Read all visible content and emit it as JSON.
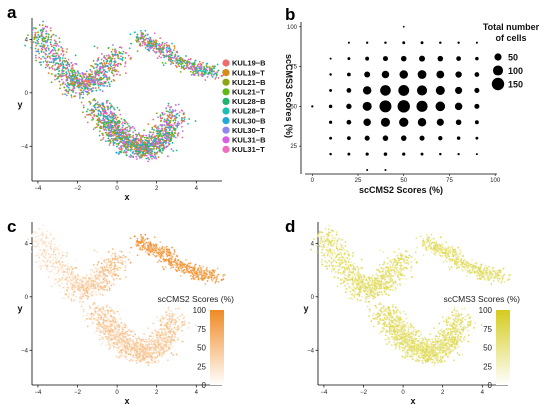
{
  "panel_labels": {
    "a": "a",
    "b": "b",
    "c": "c",
    "d": "d"
  },
  "chart_data": [
    {
      "panel": "a",
      "type": "scatter",
      "xlabel": "x",
      "ylabel": "y",
      "xticks": [
        -4,
        -2,
        0,
        2,
        4
      ],
      "yticks": [
        4,
        0,
        -4
      ],
      "xlim": [
        -4.3,
        5.3
      ],
      "ylim": [
        -6.6,
        5.6
      ],
      "legend_position": "right",
      "series": [
        {
          "name": "KUL19−B",
          "color": "#f26b6b"
        },
        {
          "name": "KUL19−T",
          "color": "#d98a1a"
        },
        {
          "name": "KUL21−B",
          "color": "#8aa612"
        },
        {
          "name": "KUL21−T",
          "color": "#5fb81a"
        },
        {
          "name": "KUL28−B",
          "color": "#1fb36e"
        },
        {
          "name": "KUL28−T",
          "color": "#1bbfb0"
        },
        {
          "name": "KUL30−B",
          "color": "#22a8d8"
        },
        {
          "name": "KUL30−T",
          "color": "#8f86f0"
        },
        {
          "name": "KUL31−B",
          "color": "#d65ee6"
        },
        {
          "name": "KUL31−T",
          "color": "#f26bc3"
        }
      ],
      "clusters": [
        {
          "x": [
            -4.0,
            -3.0,
            -2.0,
            -1.0,
            0.0
          ],
          "y": [
            4.8,
            2.2,
            0.5,
            1.0,
            3.0
          ],
          "n": 900
        },
        {
          "x": [
            -1.0,
            0.0,
            1.0,
            2.0,
            3.0
          ],
          "y": [
            -1.0,
            -3.0,
            -4.2,
            -4.0,
            -1.5
          ],
          "n": 1400
        },
        {
          "x": [
            1.0,
            2.0,
            3.0,
            4.0,
            5.0
          ],
          "y": [
            4.3,
            3.5,
            2.5,
            1.8,
            1.5
          ],
          "n": 500
        }
      ]
    },
    {
      "panel": "b",
      "type": "scatter",
      "xlabel": "scCMS2 Scores (%)",
      "ylabel": "scCMS3 Scores (%)",
      "xticks": [
        0,
        25,
        50,
        75,
        100
      ],
      "yticks": [
        25,
        50,
        75,
        100
      ],
      "xlim": [
        -4,
        101
      ],
      "ylim": [
        10,
        103
      ],
      "size_legend_title": "Total number of cells",
      "size_legend_values": [
        50,
        100,
        150
      ],
      "grid_x": [
        0,
        10,
        20,
        30,
        40,
        50,
        60,
        70,
        80,
        90,
        100
      ],
      "grid_y": [
        10,
        20,
        30,
        40,
        50,
        60,
        70,
        80,
        90,
        100
      ],
      "counts": [
        {
          "x": 0,
          "y": 50,
          "n": 5
        },
        {
          "x": 10,
          "y": 20,
          "n": 6
        },
        {
          "x": 10,
          "y": 30,
          "n": 8
        },
        {
          "x": 10,
          "y": 40,
          "n": 10
        },
        {
          "x": 10,
          "y": 50,
          "n": 12
        },
        {
          "x": 10,
          "y": 60,
          "n": 8
        },
        {
          "x": 10,
          "y": 70,
          "n": 6
        },
        {
          "x": 10,
          "y": 80,
          "n": 4
        },
        {
          "x": 20,
          "y": 20,
          "n": 8
        },
        {
          "x": 20,
          "y": 30,
          "n": 14
        },
        {
          "x": 20,
          "y": 40,
          "n": 22
        },
        {
          "x": 20,
          "y": 50,
          "n": 28
        },
        {
          "x": 20,
          "y": 60,
          "n": 22
        },
        {
          "x": 20,
          "y": 70,
          "n": 14
        },
        {
          "x": 20,
          "y": 80,
          "n": 8
        },
        {
          "x": 20,
          "y": 90,
          "n": 4
        },
        {
          "x": 30,
          "y": 10,
          "n": 4
        },
        {
          "x": 30,
          "y": 20,
          "n": 10
        },
        {
          "x": 30,
          "y": 30,
          "n": 25
        },
        {
          "x": 30,
          "y": 40,
          "n": 55
        },
        {
          "x": 30,
          "y": 50,
          "n": 80
        },
        {
          "x": 30,
          "y": 60,
          "n": 70
        },
        {
          "x": 30,
          "y": 70,
          "n": 35
        },
        {
          "x": 30,
          "y": 80,
          "n": 15
        },
        {
          "x": 30,
          "y": 90,
          "n": 5
        },
        {
          "x": 40,
          "y": 10,
          "n": 4
        },
        {
          "x": 40,
          "y": 20,
          "n": 12
        },
        {
          "x": 40,
          "y": 30,
          "n": 30
        },
        {
          "x": 40,
          "y": 40,
          "n": 80
        },
        {
          "x": 40,
          "y": 50,
          "n": 140
        },
        {
          "x": 40,
          "y": 60,
          "n": 110
        },
        {
          "x": 40,
          "y": 70,
          "n": 55
        },
        {
          "x": 40,
          "y": 80,
          "n": 25
        },
        {
          "x": 40,
          "y": 90,
          "n": 6
        },
        {
          "x": 50,
          "y": 20,
          "n": 10
        },
        {
          "x": 50,
          "y": 30,
          "n": 30
        },
        {
          "x": 50,
          "y": 40,
          "n": 85
        },
        {
          "x": 50,
          "y": 50,
          "n": 150
        },
        {
          "x": 50,
          "y": 60,
          "n": 115
        },
        {
          "x": 50,
          "y": 70,
          "n": 70
        },
        {
          "x": 50,
          "y": 80,
          "n": 30
        },
        {
          "x": 50,
          "y": 90,
          "n": 8
        },
        {
          "x": 50,
          "y": 100,
          "n": 3
        },
        {
          "x": 60,
          "y": 20,
          "n": 8
        },
        {
          "x": 60,
          "y": 30,
          "n": 25
        },
        {
          "x": 60,
          "y": 40,
          "n": 70
        },
        {
          "x": 60,
          "y": 50,
          "n": 120
        },
        {
          "x": 60,
          "y": 60,
          "n": 100
        },
        {
          "x": 60,
          "y": 70,
          "n": 75
        },
        {
          "x": 60,
          "y": 80,
          "n": 35
        },
        {
          "x": 60,
          "y": 90,
          "n": 8
        },
        {
          "x": 70,
          "y": 20,
          "n": 6
        },
        {
          "x": 70,
          "y": 30,
          "n": 18
        },
        {
          "x": 70,
          "y": 40,
          "n": 50
        },
        {
          "x": 70,
          "y": 50,
          "n": 90
        },
        {
          "x": 70,
          "y": 60,
          "n": 80
        },
        {
          "x": 70,
          "y": 70,
          "n": 60
        },
        {
          "x": 70,
          "y": 80,
          "n": 30
        },
        {
          "x": 70,
          "y": 90,
          "n": 6
        },
        {
          "x": 80,
          "y": 20,
          "n": 5
        },
        {
          "x": 80,
          "y": 30,
          "n": 12
        },
        {
          "x": 80,
          "y": 40,
          "n": 30
        },
        {
          "x": 80,
          "y": 50,
          "n": 55
        },
        {
          "x": 80,
          "y": 60,
          "n": 50
        },
        {
          "x": 80,
          "y": 70,
          "n": 40
        },
        {
          "x": 80,
          "y": 80,
          "n": 22
        },
        {
          "x": 80,
          "y": 90,
          "n": 5
        },
        {
          "x": 90,
          "y": 20,
          "n": 4
        },
        {
          "x": 90,
          "y": 30,
          "n": 8
        },
        {
          "x": 90,
          "y": 40,
          "n": 15
        },
        {
          "x": 90,
          "y": 50,
          "n": 25
        },
        {
          "x": 90,
          "y": 60,
          "n": 25
        },
        {
          "x": 90,
          "y": 70,
          "n": 22
        },
        {
          "x": 90,
          "y": 80,
          "n": 12
        },
        {
          "x": 90,
          "y": 90,
          "n": 4
        }
      ]
    },
    {
      "panel": "c",
      "type": "scatter",
      "xlabel": "x",
      "ylabel": "y",
      "xticks": [
        -4,
        -2,
        0,
        2,
        4
      ],
      "yticks": [
        4,
        0,
        -4
      ],
      "xlim": [
        -4.3,
        5.3
      ],
      "ylim": [
        -6.6,
        5.6
      ],
      "colorbar": {
        "title": "scCMS2 Scores (%)",
        "ticks": [
          100,
          75,
          50,
          25,
          0
        ],
        "range": [
          0,
          100
        ],
        "low_color": "#ffffff",
        "high_color": "#f08a24"
      }
    },
    {
      "panel": "d",
      "type": "scatter",
      "xlabel": "x",
      "ylabel": "y",
      "xticks": [
        -4,
        -2,
        0,
        2,
        4
      ],
      "yticks": [
        4,
        0,
        -4
      ],
      "xlim": [
        -4.3,
        5.3
      ],
      "ylim": [
        -6.6,
        5.6
      ],
      "colorbar": {
        "title": "scCMS3 Scores (%)",
        "ticks": [
          100,
          75,
          50,
          25,
          0
        ],
        "range": [
          0,
          100
        ],
        "low_color": "#ffffff",
        "high_color": "#d4cc1c"
      }
    }
  ]
}
